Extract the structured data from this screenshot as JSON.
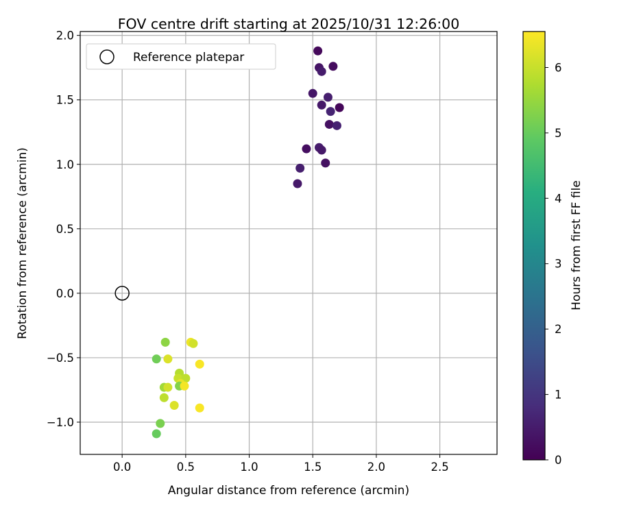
{
  "chart_data": {
    "type": "scatter",
    "title": "FOV centre drift starting at 2025/10/31 12:26:00",
    "xlabel": "Angular distance from reference (arcmin)",
    "ylabel": "Rotation from reference (arcmin)",
    "xlim": [
      -0.33,
      2.95
    ],
    "ylim": [
      -1.25,
      2.03
    ],
    "x_ticks": [
      0.0,
      0.5,
      1.0,
      1.5,
      2.0,
      2.5
    ],
    "x_tick_labels": [
      "0.0",
      "0.5",
      "1.0",
      "1.5",
      "2.0",
      "2.5"
    ],
    "y_ticks": [
      -1.0,
      -0.5,
      0.0,
      0.5,
      1.0,
      1.5,
      2.0
    ],
    "y_tick_labels": [
      "−1.0",
      "−0.5",
      "0.0",
      "0.5",
      "1.0",
      "1.5",
      "2.0"
    ],
    "grid": true,
    "legend": {
      "placement": "top-left",
      "entries": [
        "Reference platepar"
      ]
    },
    "reference_point": {
      "x": 0.0,
      "y": 0.0,
      "marker": "open-circle",
      "color": "#000000"
    },
    "colorbar": {
      "label": "Hours from first FF file",
      "colormap": "viridis",
      "range": [
        0,
        6.55
      ],
      "ticks": [
        0,
        1,
        2,
        3,
        4,
        5,
        6
      ],
      "tick_labels": [
        "0",
        "1",
        "2",
        "3",
        "4",
        "5",
        "6"
      ]
    },
    "points": [
      {
        "x": 1.54,
        "y": 1.88,
        "h": 0.15
      },
      {
        "x": 1.66,
        "y": 1.76,
        "h": 0.2
      },
      {
        "x": 1.55,
        "y": 1.75,
        "h": 0.35
      },
      {
        "x": 1.57,
        "y": 1.72,
        "h": 0.5
      },
      {
        "x": 1.5,
        "y": 1.55,
        "h": 0.4
      },
      {
        "x": 1.62,
        "y": 1.52,
        "h": 0.55
      },
      {
        "x": 1.57,
        "y": 1.46,
        "h": 0.45
      },
      {
        "x": 1.71,
        "y": 1.44,
        "h": 0.1
      },
      {
        "x": 1.64,
        "y": 1.41,
        "h": 0.65
      },
      {
        "x": 1.63,
        "y": 1.31,
        "h": 0.3
      },
      {
        "x": 1.69,
        "y": 1.3,
        "h": 0.6
      },
      {
        "x": 1.45,
        "y": 1.12,
        "h": 0.25
      },
      {
        "x": 1.55,
        "y": 1.13,
        "h": 0.5
      },
      {
        "x": 1.57,
        "y": 1.11,
        "h": 0.45
      },
      {
        "x": 1.6,
        "y": 1.01,
        "h": 0.3
      },
      {
        "x": 1.4,
        "y": 0.97,
        "h": 0.55
      },
      {
        "x": 1.38,
        "y": 0.85,
        "h": 0.45
      },
      {
        "x": 0.34,
        "y": -0.38,
        "h": 5.4
      },
      {
        "x": 0.54,
        "y": -0.38,
        "h": 6.4
      },
      {
        "x": 0.56,
        "y": -0.39,
        "h": 6.1
      },
      {
        "x": 0.27,
        "y": -0.51,
        "h": 5.1
      },
      {
        "x": 0.36,
        "y": -0.51,
        "h": 6.2
      },
      {
        "x": 0.61,
        "y": -0.55,
        "h": 6.5
      },
      {
        "x": 0.45,
        "y": -0.62,
        "h": 5.8
      },
      {
        "x": 0.44,
        "y": -0.66,
        "h": 6.0
      },
      {
        "x": 0.5,
        "y": -0.66,
        "h": 5.9
      },
      {
        "x": 0.46,
        "y": -0.7,
        "h": 6.3
      },
      {
        "x": 0.45,
        "y": -0.72,
        "h": 5.3
      },
      {
        "x": 0.49,
        "y": -0.72,
        "h": 6.45
      },
      {
        "x": 0.33,
        "y": -0.73,
        "h": 5.6
      },
      {
        "x": 0.36,
        "y": -0.73,
        "h": 6.1
      },
      {
        "x": 0.33,
        "y": -0.81,
        "h": 5.9
      },
      {
        "x": 0.41,
        "y": -0.87,
        "h": 6.2
      },
      {
        "x": 0.61,
        "y": -0.89,
        "h": 6.5
      },
      {
        "x": 0.3,
        "y": -1.01,
        "h": 5.2
      },
      {
        "x": 0.27,
        "y": -1.09,
        "h": 5.0
      }
    ]
  }
}
